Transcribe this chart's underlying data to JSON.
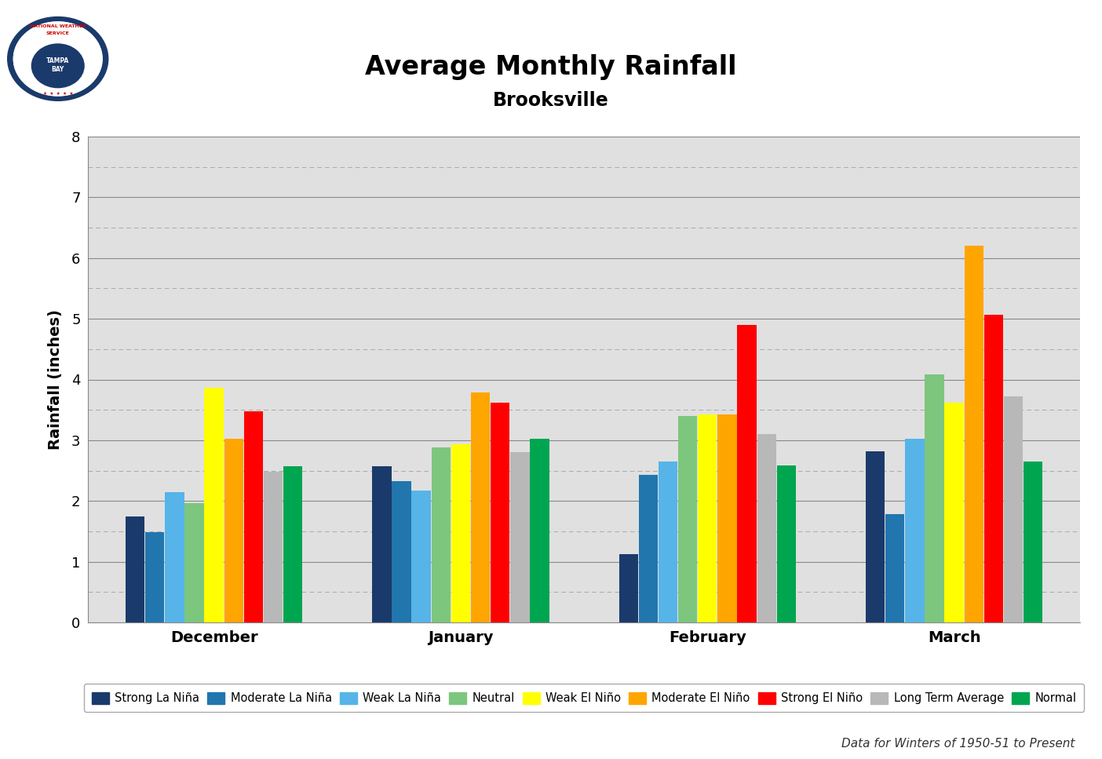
{
  "title": "Average Monthly Rainfall",
  "subtitle": "Brooksville",
  "footnote": "Data for Winters of 1950-51 to Present",
  "ylabel": "Rainfall (inches)",
  "ylim": [
    0,
    8
  ],
  "yticks": [
    0,
    1,
    2,
    3,
    4,
    5,
    6,
    7,
    8
  ],
  "months": [
    "December",
    "January",
    "February",
    "March"
  ],
  "categories": [
    "Strong La Niña",
    "Moderate La Niña",
    "Weak La Niña",
    "Neutral",
    "Weak El Niño",
    "Moderate El Niño",
    "Strong El Niño",
    "Long Term Average",
    "Normal"
  ],
  "colors": [
    "#1a3a6b",
    "#2176ae",
    "#56b4e9",
    "#7dc67e",
    "#ffff00",
    "#ffa500",
    "#ff0000",
    "#b8b8b8",
    "#00a550"
  ],
  "data": {
    "December": [
      1.75,
      1.48,
      2.15,
      1.97,
      3.87,
      3.02,
      3.48,
      2.48,
      2.57
    ],
    "January": [
      2.57,
      2.32,
      2.17,
      2.88,
      2.93,
      3.79,
      3.62,
      2.8,
      3.02
    ],
    "February": [
      1.13,
      2.43,
      2.65,
      3.4,
      3.42,
      3.42,
      4.9,
      3.1,
      2.58
    ],
    "March": [
      2.82,
      1.78,
      3.02,
      4.08,
      3.62,
      6.2,
      5.07,
      3.72,
      2.65
    ]
  },
  "outer_bg_color": "#ffffff",
  "plot_bg_color": "#e0e0e0",
  "grid_color": "#aaaaaa",
  "solid_line_color": "#888888"
}
